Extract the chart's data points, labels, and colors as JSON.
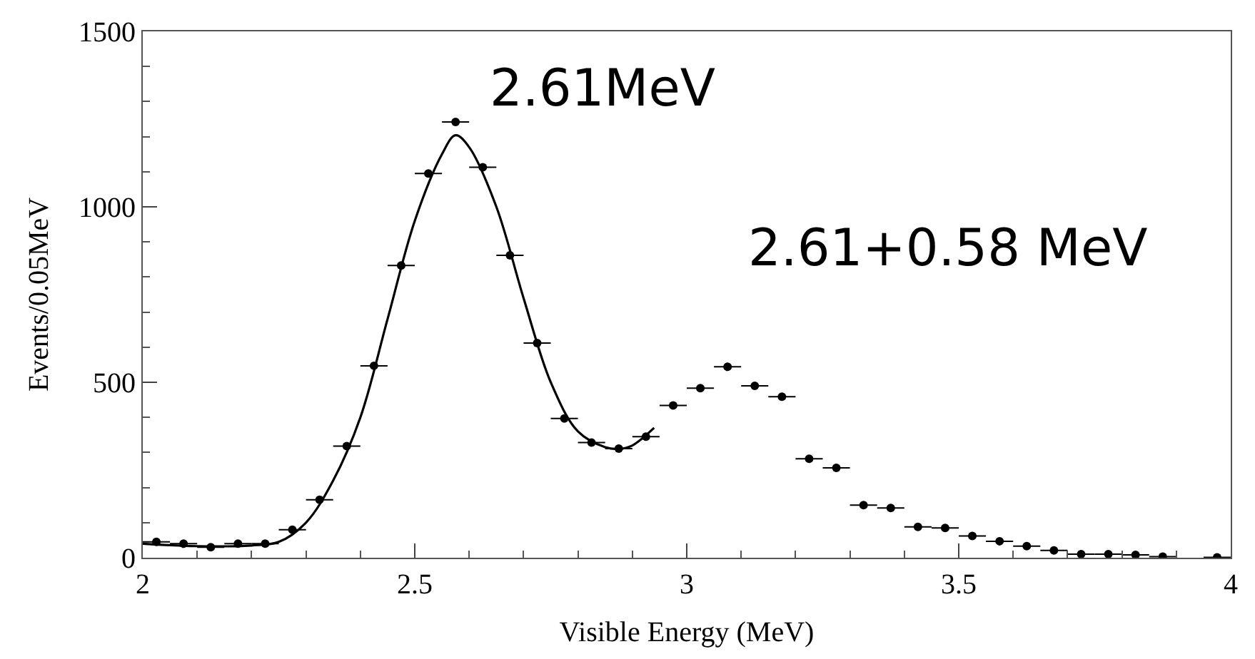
{
  "chart_data": {
    "type": "scatter",
    "xlabel": "Visible Energy (MeV)",
    "ylabel": "Events/0.05MeV",
    "xlim": [
      2,
      4
    ],
    "xticks": [
      2,
      2.5,
      3,
      3.5,
      4
    ],
    "ylim": [
      0,
      1500
    ],
    "yticks": [
      0,
      500,
      1000,
      1500
    ],
    "series": [
      {
        "marker": "circle",
        "color": "#000000",
        "x": [
          2.025,
          2.075,
          2.125,
          2.175,
          2.225,
          2.275,
          2.325,
          2.375,
          2.425,
          2.475,
          2.525,
          2.575,
          2.625,
          2.675,
          2.725,
          2.775,
          2.825,
          2.875,
          2.925,
          2.975,
          3.025,
          3.075,
          3.125,
          3.175,
          3.225,
          3.275,
          3.325,
          3.375,
          3.425,
          3.475,
          3.525,
          3.575,
          3.625,
          3.675,
          3.725,
          3.775,
          3.825,
          3.875,
          3.975
        ],
        "values": [
          45,
          40,
          30,
          40,
          40,
          80,
          165,
          318,
          547,
          833,
          1095,
          1242,
          1113,
          862,
          612,
          397,
          328,
          311,
          345,
          434,
          483,
          544,
          490,
          459,
          282,
          256,
          150,
          142,
          88,
          85,
          62,
          47,
          33,
          21,
          10,
          10,
          8,
          3,
          1
        ],
        "xerrors": [
          0.025,
          0.025,
          0.025,
          0.025,
          0.025,
          0.025,
          0.025,
          0.025,
          0.025,
          0.025,
          0.025,
          0.025,
          0.025,
          0.025,
          0.025,
          0.025,
          0.025,
          0.025,
          0.025,
          0.025,
          0.025,
          0.025,
          0.025,
          0.025,
          0.025,
          0.025,
          0.025,
          0.025,
          0.025,
          0.025,
          0.025,
          0.025,
          0.025,
          0.025,
          0.025,
          0.025,
          0.025,
          0.025,
          0.025
        ]
      },
      {
        "type": "line",
        "color": "#000000",
        "x": [
          2.0,
          2.1,
          2.2,
          2.25,
          2.3,
          2.35,
          2.4,
          2.45,
          2.5,
          2.55,
          2.575,
          2.6,
          2.65,
          2.7,
          2.75,
          2.8,
          2.85,
          2.875,
          2.9,
          2.94
        ],
        "values": [
          40,
          33,
          35,
          45,
          100,
          220,
          400,
          680,
          960,
          1150,
          1204,
          1170,
          1000,
          740,
          500,
          360,
          315,
          310,
          320,
          370
        ]
      }
    ],
    "annotations": [
      {
        "text": "2.61MeV",
        "x": 2.575,
        "y": 1242
      },
      {
        "text": "2.61+0.58 MeV",
        "x": 3.075,
        "y": 544
      }
    ]
  }
}
